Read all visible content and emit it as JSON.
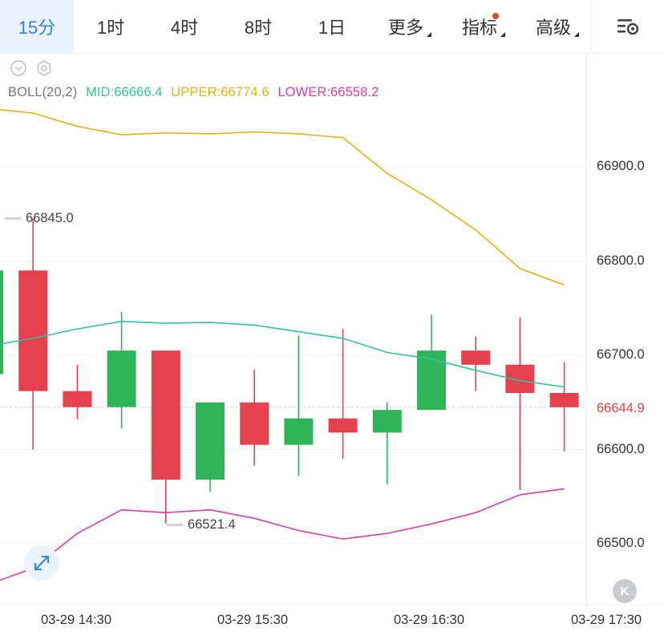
{
  "toolbar": {
    "tabs": [
      {
        "label": "15分",
        "active": true,
        "has_dropdown": false
      },
      {
        "label": "1时",
        "active": false,
        "has_dropdown": false
      },
      {
        "label": "4时",
        "active": false,
        "has_dropdown": false
      },
      {
        "label": "8时",
        "active": false,
        "has_dropdown": false
      },
      {
        "label": "1日",
        "active": false,
        "has_dropdown": false
      },
      {
        "label": "更多",
        "active": false,
        "has_dropdown": true
      },
      {
        "label": "指标",
        "active": false,
        "has_dropdown": true,
        "notification_dot": true
      },
      {
        "label": "高级",
        "active": false,
        "has_dropdown": true
      }
    ],
    "settings_icon": "chart-settings-icon"
  },
  "indicator_legend": {
    "name": "BOLL(20,2)",
    "mid_label": "MID:66666.4",
    "upper_label": "UPPER:66774.6",
    "lower_label": "LOWER:66558.2"
  },
  "colors": {
    "up": "#2fb45a",
    "down": "#e5414f",
    "mid_line": "#2ec4a0",
    "upper_line": "#e0b312",
    "lower_line": "#d63fa6",
    "accent": "#2e86de",
    "last_price": "#e8413c"
  },
  "price_axis": {
    "ticks": [
      "66900.0",
      "66800.0",
      "66700.0",
      "66600.0",
      "66500.0"
    ],
    "last_price": "66644.9"
  },
  "time_axis": {
    "ticks": [
      "03-29 14:30",
      "03-29 15:30",
      "03-29 16:30",
      "03-29 17:30"
    ]
  },
  "extremes": {
    "high_label": "66845.0",
    "low_label": "66521.4"
  },
  "buttons": {
    "k_label": "K"
  },
  "chart_data": {
    "type": "candlestick",
    "interval": "15分",
    "ylim": [
      66440,
      67000
    ],
    "y_ticks": [
      66500,
      66600,
      66700,
      66800,
      66900
    ],
    "x_ticks": [
      "03-29 14:30",
      "03-29 15:30",
      "03-29 16:30",
      "03-29 17:30"
    ],
    "candles": [
      {
        "open": 66680,
        "high": 66790,
        "low": 66660,
        "close": 66790
      },
      {
        "open": 66790,
        "high": 66845,
        "low": 66600,
        "close": 66662
      },
      {
        "open": 66662,
        "high": 66690,
        "low": 66632,
        "close": 66645
      },
      {
        "open": 66645,
        "high": 66746,
        "low": 66622,
        "close": 66705
      },
      {
        "open": 66705,
        "high": 66705,
        "low": 66521.4,
        "close": 66568
      },
      {
        "open": 66568,
        "high": 66650,
        "low": 66555,
        "close": 66650
      },
      {
        "open": 66650,
        "high": 66685,
        "low": 66583,
        "close": 66605
      },
      {
        "open": 66605,
        "high": 66721,
        "low": 66572,
        "close": 66633
      },
      {
        "open": 66633,
        "high": 66728,
        "low": 66590,
        "close": 66618
      },
      {
        "open": 66618,
        "high": 66650,
        "low": 66563,
        "close": 66642
      },
      {
        "open": 66642,
        "high": 66743,
        "low": 66642,
        "close": 66705
      },
      {
        "open": 66705,
        "high": 66720,
        "low": 66662,
        "close": 66690
      },
      {
        "open": 66690,
        "high": 66740,
        "low": 66557,
        "close": 66660
      },
      {
        "open": 66660,
        "high": 66693,
        "low": 66598,
        "close": 66644.9
      }
    ],
    "boll": {
      "upper": [
        66962,
        66957,
        66943,
        66934,
        66936,
        66935,
        66937,
        66935,
        66931,
        66893,
        66865,
        66833,
        66792,
        66774.6
      ],
      "mid": [
        66710,
        66718,
        66728,
        66736,
        66734,
        66735,
        66732,
        66725,
        66718,
        66703,
        66696,
        66684,
        66673,
        66666.4
      ],
      "lower": [
        66457,
        66474,
        66511,
        66536,
        66533,
        66536,
        66527,
        66514,
        66505,
        66511,
        66521,
        66533,
        66552,
        66558.2
      ]
    }
  }
}
